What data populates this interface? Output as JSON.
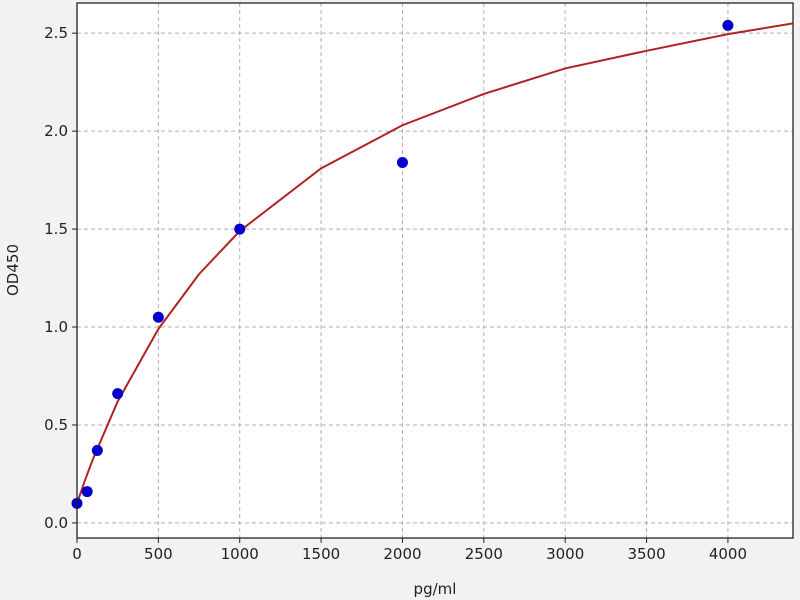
{
  "chart_data": {
    "type": "scatter",
    "title": "",
    "xlabel": "pg/ml",
    "ylabel": "OD450",
    "xlim": [
      0,
      4400
    ],
    "ylim": [
      -0.077,
      2.654
    ],
    "xticks": [
      0,
      500,
      1000,
      1500,
      2000,
      2500,
      3000,
      3500,
      4000
    ],
    "xtick_labels": [
      "0",
      "500",
      "1000",
      "1500",
      "2000",
      "2500",
      "3000",
      "3500",
      "4000"
    ],
    "yticks": [
      0.0,
      0.5,
      1.0,
      1.5,
      2.0,
      2.5
    ],
    "ytick_labels": [
      "0.0",
      "0.5",
      "1.0",
      "1.5",
      "2.0",
      "2.5"
    ],
    "grid": true,
    "points": {
      "x": [
        0,
        62.5,
        125,
        250,
        500,
        1000,
        2000,
        4000
      ],
      "y": [
        0.1,
        0.16,
        0.37,
        0.66,
        1.05,
        1.5,
        1.84,
        2.54
      ],
      "color": "#0000cc"
    },
    "fit_curve": {
      "x": [
        0,
        50,
        100,
        250,
        500,
        750,
        1000,
        1500,
        2000,
        2500,
        3000,
        3500,
        4000,
        4400
      ],
      "y": [
        0.1,
        0.22,
        0.33,
        0.62,
        0.99,
        1.27,
        1.49,
        1.81,
        2.03,
        2.19,
        2.32,
        2.41,
        2.495,
        2.55
      ],
      "color": "#b22222"
    }
  }
}
